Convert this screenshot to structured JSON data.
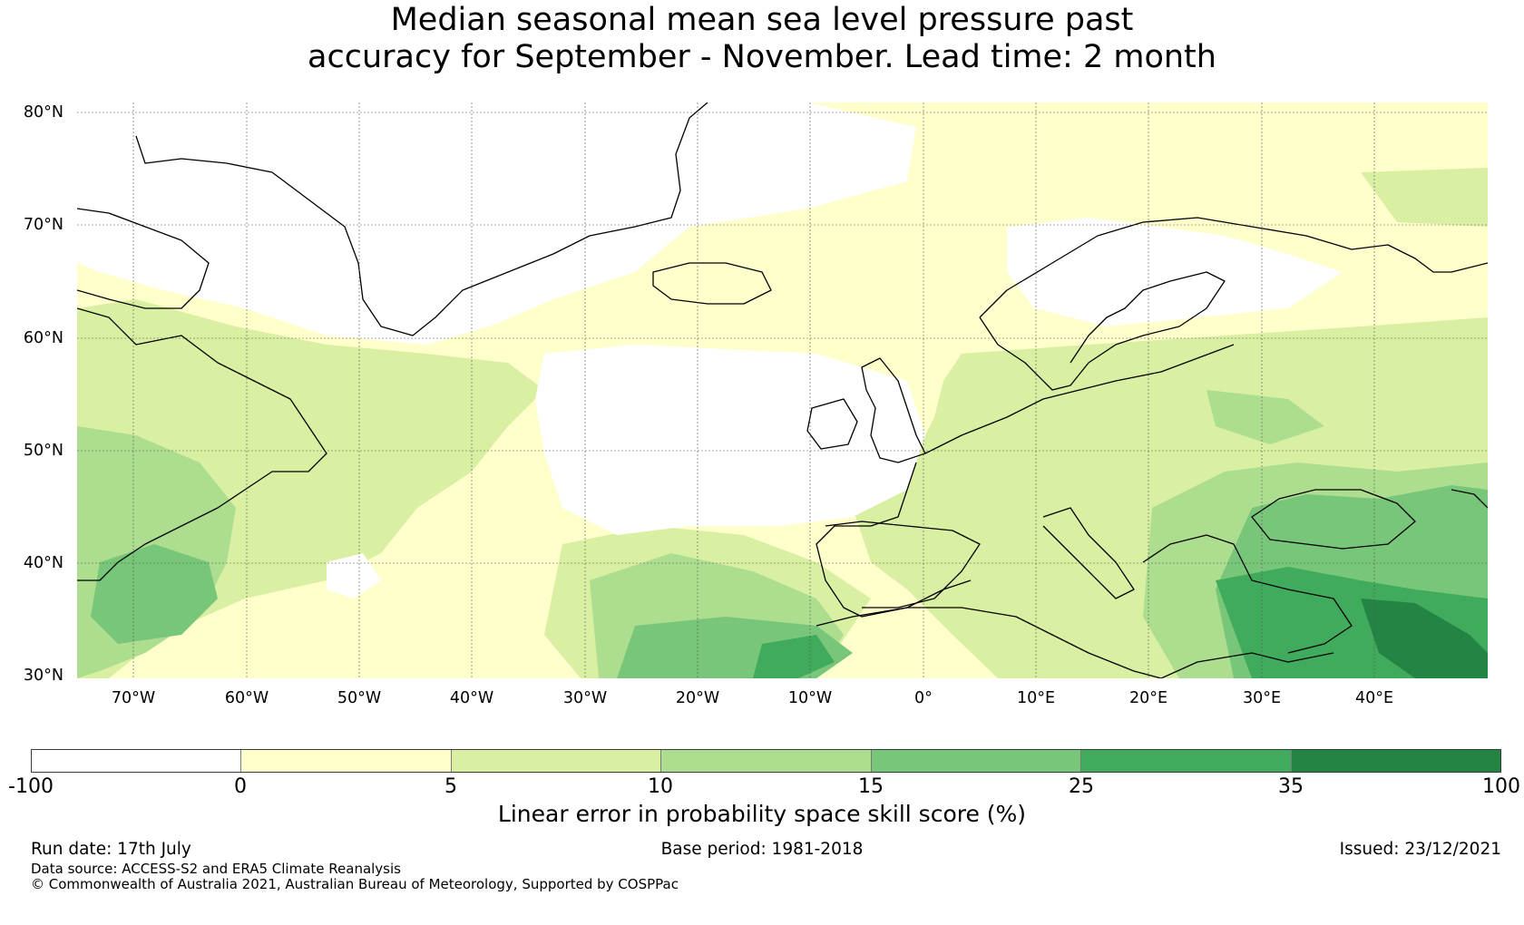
{
  "title": {
    "line1": "Median seasonal mean sea level pressure past",
    "line2": "accuracy for September - November. Lead time: 2 month"
  },
  "map": {
    "lat_labels": [
      "80°N",
      "70°N",
      "60°N",
      "50°N",
      "40°N",
      "30°N"
    ],
    "lon_labels": [
      "70°W",
      "60°W",
      "50°W",
      "40°W",
      "30°W",
      "20°W",
      "10°W",
      "0°",
      "10°E",
      "20°E",
      "30°E",
      "40°E"
    ],
    "lat_range": [
      30,
      81
    ],
    "lon_range": [
      -75,
      50
    ],
    "gridlines": true
  },
  "colorbar": {
    "colors": [
      "#ffffff",
      "#ffffcc",
      "#d9f0a3",
      "#addd8e",
      "#78c679",
      "#41ab5d",
      "#238443"
    ],
    "ticks": [
      "-100",
      "0",
      "5",
      "10",
      "15",
      "25",
      "35",
      "100"
    ],
    "label": "Linear error in probability space skill score (%)"
  },
  "footer": {
    "run_date": "Run date: 17th July",
    "base_period": "Base period: 1981-2018",
    "issued": "Issued: 23/12/2021",
    "data_source": "Data source: ACCESS-S2 and ERA5 Climate Reanalysis",
    "copyright": "© Commonwealth of Australia 2021, Australian Bureau of Meteorology, Supported by COSPPac"
  }
}
